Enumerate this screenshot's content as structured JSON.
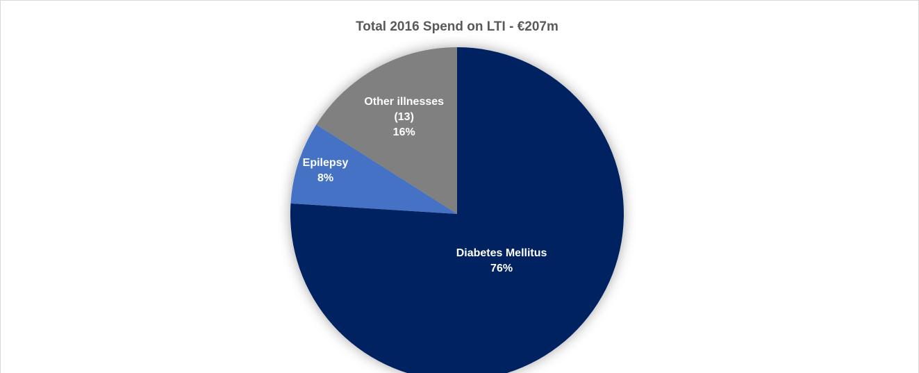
{
  "chart_data": {
    "type": "pie",
    "title": "Total 2016 Spend on LTI - €207m",
    "categories": [
      "Diabetes Mellitus",
      "Epilepsy",
      "Other illnesses (13)"
    ],
    "values": [
      76,
      8,
      16
    ],
    "value_labels": [
      "76%",
      "8%",
      "16%"
    ],
    "colors": [
      "#002060",
      "#4472c4",
      "#808080"
    ]
  }
}
